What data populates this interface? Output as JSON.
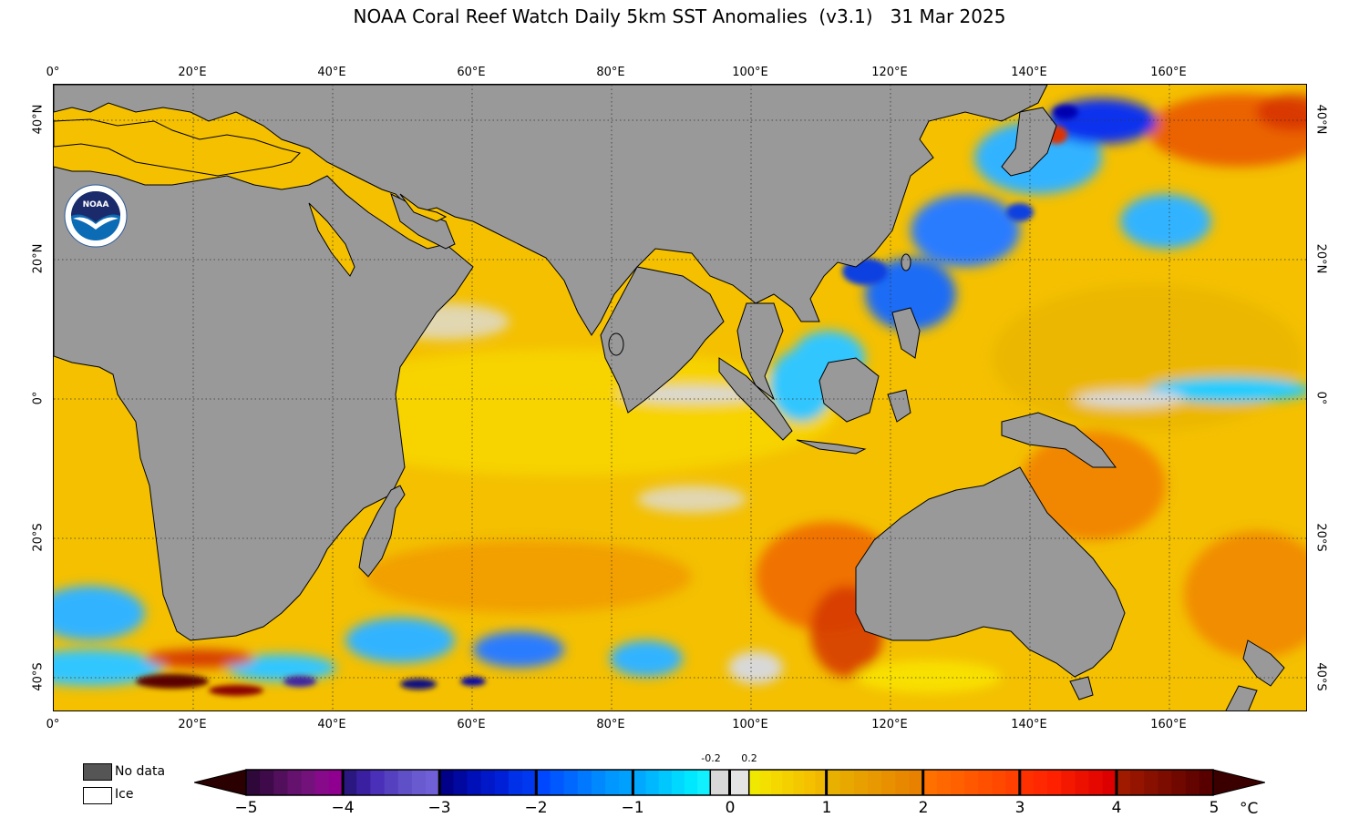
{
  "title": "NOAA Coral Reef Watch Daily 5km SST Anomalies  (v3.1)   31 Mar 2025",
  "lon_labels": [
    "0°",
    "20°E",
    "40°E",
    "60°E",
    "80°E",
    "100°E",
    "120°E",
    "140°E",
    "160°E"
  ],
  "lat_labels_left": [
    "40°N",
    "20°N",
    "0°",
    "20°S",
    "40°S"
  ],
  "lat_labels_right": [
    "40°N",
    "20°N",
    "0°",
    "20°S",
    "40°S"
  ],
  "legend": {
    "no_data": "No data",
    "ice": "Ice"
  },
  "logo_text": "NOAA",
  "colorbar": {
    "ticks": [
      "−5",
      "−4",
      "−3",
      "−2",
      "−1",
      "0",
      "1",
      "2",
      "3",
      "4",
      "5"
    ],
    "small_ticks": [
      "-0.2",
      "0.2"
    ],
    "unit": "°C"
  },
  "colors": {
    "land": "#999999",
    "no_data": "#555555",
    "ocean_base": "#f5c500"
  }
}
